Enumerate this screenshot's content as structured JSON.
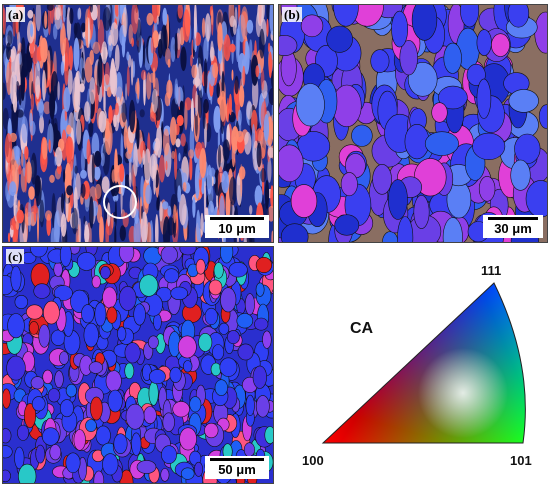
{
  "panels": [
    {
      "label": "(a)",
      "scale_text": "10 μm",
      "base_color": "#1f2f8f",
      "grain_colors": [
        "#ff5548",
        "#e8c4d0",
        "#7f9cf0",
        "#0a0f40",
        "#ff8a70"
      ]
    },
    {
      "label": "(b)",
      "scale_text": "30 μm",
      "base_color": "#8a6e62",
      "grain_colors": [
        "#3a3ff0",
        "#6a3fe6",
        "#2f5ff0",
        "#8f3fe8",
        "#1f2fcf",
        "#e040d8",
        "#5a7ff5"
      ]
    },
    {
      "label": "(c)",
      "scale_text": "50 μm",
      "base_color": "#2a2fcf",
      "grain_colors": [
        "#2f3ff5",
        "#3f2fe0",
        "#6a3fe8",
        "#e02020",
        "#d040e0",
        "#ff5580",
        "#28c8c8",
        "#1f5ff5",
        "#8a3ff0"
      ]
    }
  ],
  "legend": {
    "name": "CA",
    "corner_labels": {
      "top": "111",
      "left": "100",
      "right": "101"
    },
    "colors": {
      "red": "#ff0000",
      "green": "#00ff00",
      "blue": "#0000ff"
    }
  }
}
